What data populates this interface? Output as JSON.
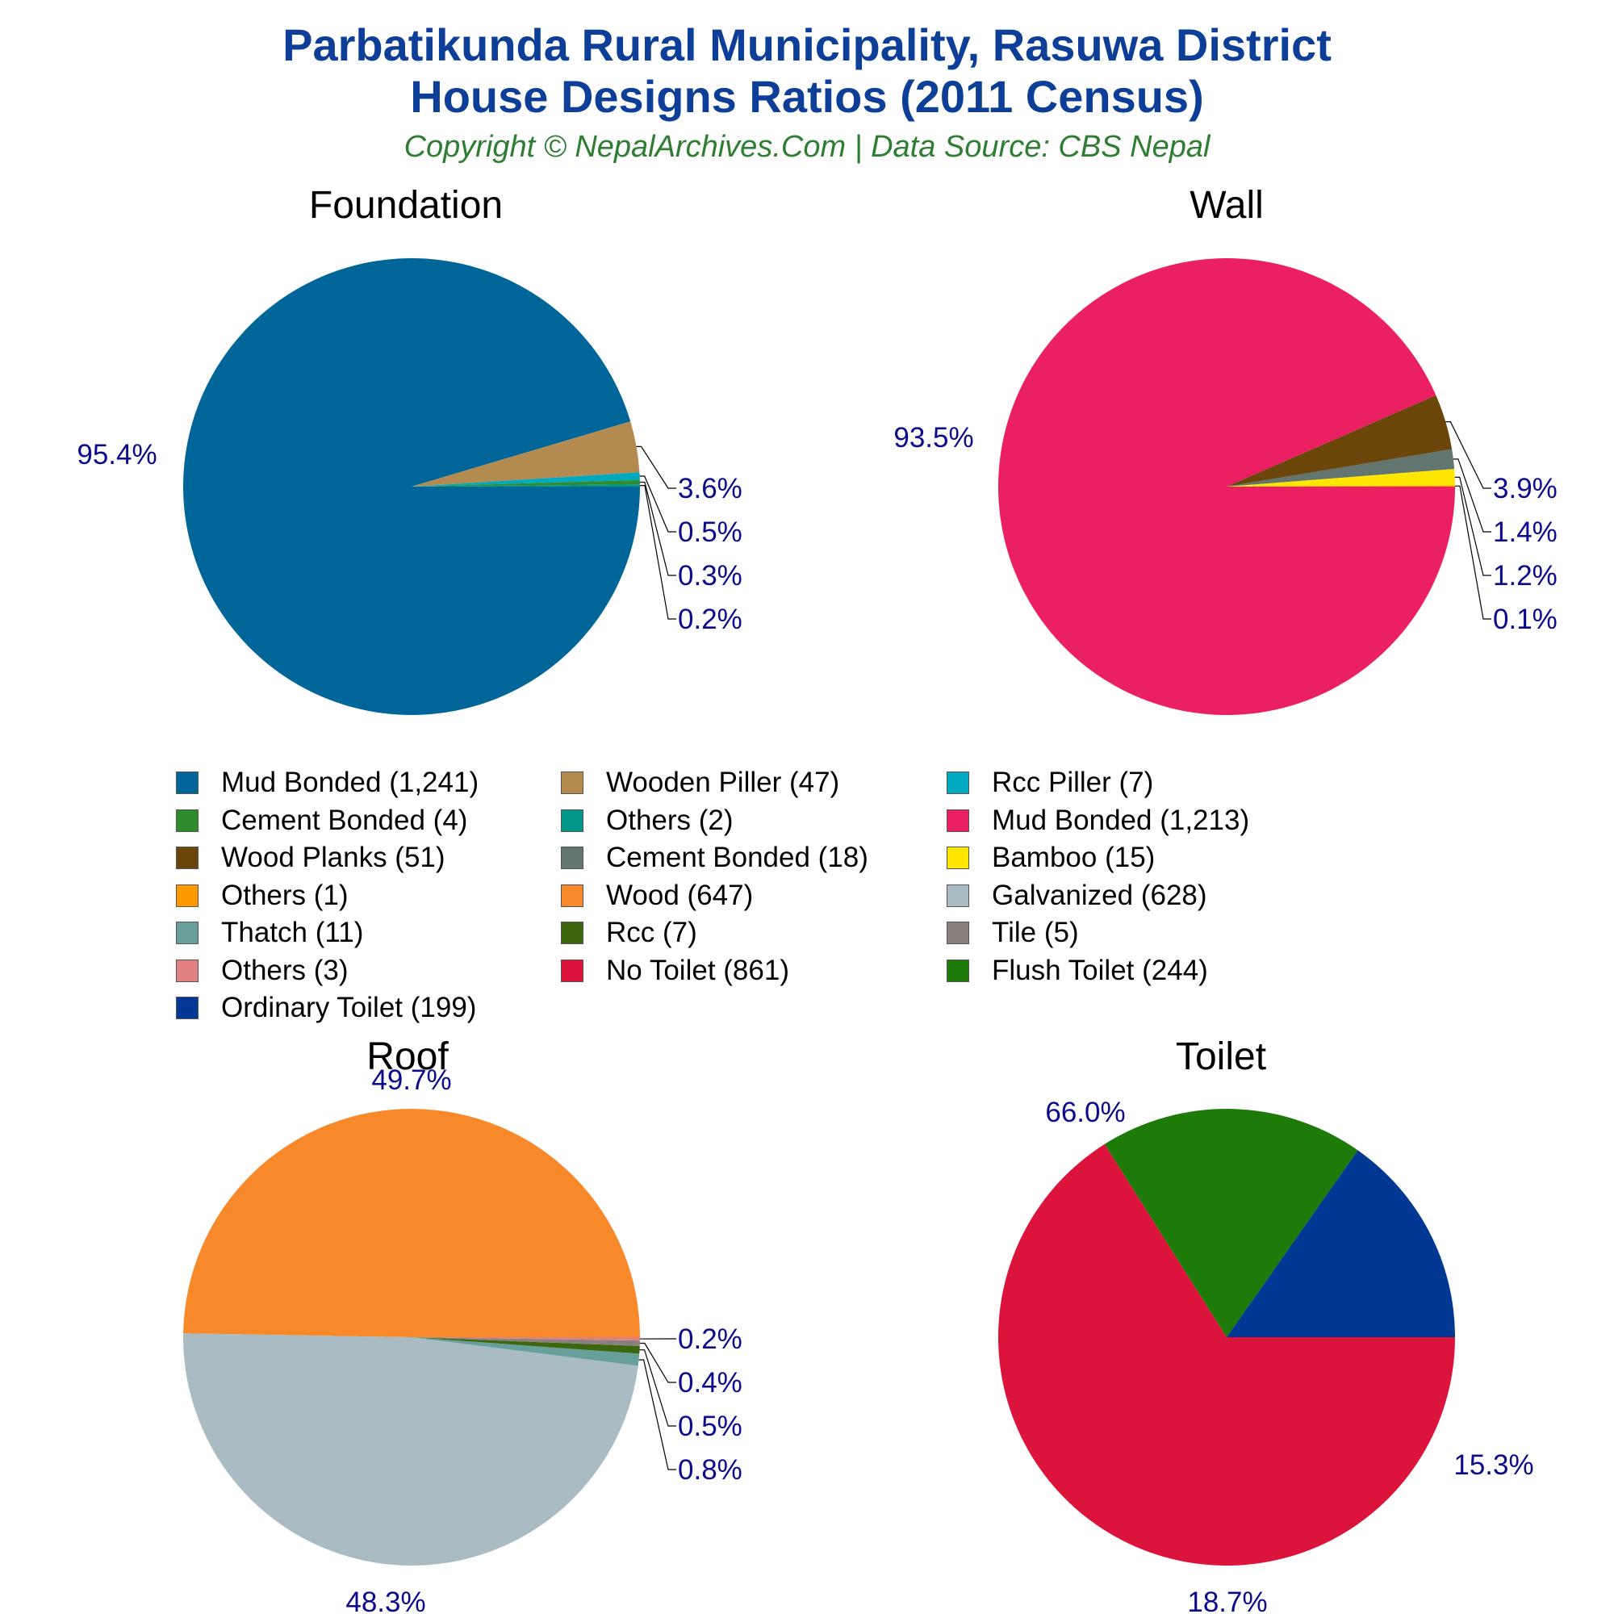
{
  "header": {
    "title_line1": "Parbatikunda Rural Municipality, Rasuwa District",
    "title_line2": "House Designs Ratios (2011 Census)",
    "subtitle": "Copyright © NepalArchives.Com | Data Source: CBS Nepal"
  },
  "colors": {
    "title": "#0e3f98",
    "subtitle": "#2e7d32",
    "percent_label": "#0a0a8c",
    "leader_line": "#000000"
  },
  "legend": {
    "items": [
      {
        "label": "Mud Bonded (1,241)",
        "color": "#006699"
      },
      {
        "label": "Wooden Piller (47)",
        "color": "#b38b50"
      },
      {
        "label": "Rcc Piller (7)",
        "color": "#00a8c0"
      },
      {
        "label": "Cement Bonded (4)",
        "color": "#2e8b2e"
      },
      {
        "label": "Others (2)",
        "color": "#009688"
      },
      {
        "label": "Mud Bonded (1,213)",
        "color": "#ea2063"
      },
      {
        "label": "Wood Planks (51)",
        "color": "#6b460b"
      },
      {
        "label": "Cement Bonded (18)",
        "color": "#62756e"
      },
      {
        "label": "Bamboo (15)",
        "color": "#ffe600"
      },
      {
        "label": "Others (1)",
        "color": "#ff9900"
      },
      {
        "label": "Wood (647)",
        "color": "#f7892b"
      },
      {
        "label": "Galvanized (628)",
        "color": "#a9bcc4"
      },
      {
        "label": "Thatch (11)",
        "color": "#67a09b"
      },
      {
        "label": "Rcc (7)",
        "color": "#3d6610"
      },
      {
        "label": "Tile (5)",
        "color": "#8a807c"
      },
      {
        "label": "Others (3)",
        "color": "#e08080"
      },
      {
        "label": "No Toilet (861)",
        "color": "#dc143c"
      },
      {
        "label": "Flush Toilet (244)",
        "color": "#1e7b0a"
      },
      {
        "label": "Ordinary Toilet (199)",
        "color": "#003893"
      }
    ]
  },
  "chart_data": [
    {
      "type": "pie",
      "title": "Foundation",
      "slices": [
        {
          "name": "Mud Bonded",
          "value": 1241,
          "pct_label": "95.4%",
          "color": "#006699"
        },
        {
          "name": "Wooden Piller",
          "value": 47,
          "pct_label": "3.6%",
          "color": "#b38b50"
        },
        {
          "name": "Rcc Piller",
          "value": 7,
          "pct_label": "0.5%",
          "color": "#00a8c0"
        },
        {
          "name": "Cement Bonded",
          "value": 4,
          "pct_label": "0.3%",
          "color": "#2e8b2e"
        },
        {
          "name": "Others",
          "value": 2,
          "pct_label": "0.2%",
          "color": "#009688"
        }
      ]
    },
    {
      "type": "pie",
      "title": "Wall",
      "slices": [
        {
          "name": "Mud Bonded",
          "value": 1213,
          "pct_label": "93.5%",
          "color": "#ea2063"
        },
        {
          "name": "Wood Planks",
          "value": 51,
          "pct_label": "3.9%",
          "color": "#6b460b"
        },
        {
          "name": "Cement Bonded",
          "value": 18,
          "pct_label": "1.4%",
          "color": "#62756e"
        },
        {
          "name": "Bamboo",
          "value": 15,
          "pct_label": "1.2%",
          "color": "#ffe600"
        },
        {
          "name": "Others",
          "value": 1,
          "pct_label": "0.1%",
          "color": "#ff9900"
        }
      ]
    },
    {
      "type": "pie",
      "title": "Roof",
      "slices": [
        {
          "name": "Wood",
          "value": 647,
          "pct_label": "49.7%",
          "color": "#f7892b"
        },
        {
          "name": "Galvanized",
          "value": 628,
          "pct_label": "48.3%",
          "color": "#a9bcc4"
        },
        {
          "name": "Thatch",
          "value": 11,
          "pct_label": "0.8%",
          "color": "#67a09b"
        },
        {
          "name": "Rcc",
          "value": 7,
          "pct_label": "0.5%",
          "color": "#3d6610"
        },
        {
          "name": "Tile",
          "value": 5,
          "pct_label": "0.4%",
          "color": "#8a807c"
        },
        {
          "name": "Others",
          "value": 3,
          "pct_label": "0.2%",
          "color": "#e08080"
        }
      ]
    },
    {
      "type": "pie",
      "title": "Toilet",
      "slices": [
        {
          "name": "No Toilet",
          "value": 861,
          "pct_label": "66.0%",
          "color": "#dc143c"
        },
        {
          "name": "Flush Toilet",
          "value": 244,
          "pct_label": "18.7%",
          "color": "#1e7b0a"
        },
        {
          "name": "Ordinary Toilet",
          "value": 199,
          "pct_label": "15.3%",
          "color": "#003893"
        }
      ]
    }
  ]
}
